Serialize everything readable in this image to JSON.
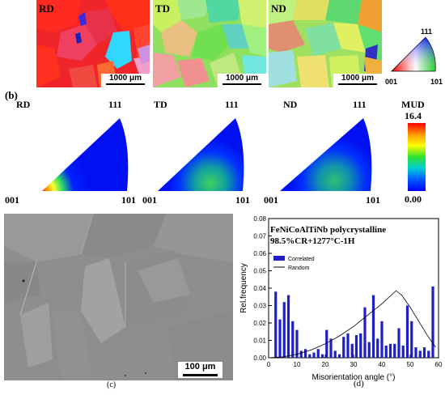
{
  "panel_a": {
    "maps": [
      {
        "label": "RD",
        "scale": "1000 μm"
      },
      {
        "label": "TD",
        "scale": "1000 μm"
      },
      {
        "label": "ND",
        "scale": "1000 μm"
      }
    ],
    "legend": {
      "top": "111",
      "left": "001",
      "right": "101"
    }
  },
  "panel_b": {
    "label": "(b)",
    "figures": [
      {
        "label": "RD",
        "top": "111",
        "left": "001",
        "right": "101"
      },
      {
        "label": "TD",
        "top": "111",
        "left": "001",
        "right": "101"
      },
      {
        "label": "ND",
        "top": "111",
        "left": "001",
        "right": "101"
      }
    ],
    "colorbar": {
      "title": "MUD",
      "max": "16.4",
      "min": "0.00"
    }
  },
  "panel_c": {
    "label": "(c)",
    "scale": "100 μm"
  },
  "panel_d": {
    "label": "(d)",
    "annotation_line1": "FeNiCoAlTiNb polycrystalline",
    "annotation_line2": "98.5%CR+1277°C-1H"
  },
  "colors": {
    "bar": "#1f1fc8",
    "curve": "#000000"
  },
  "chart_data": {
    "type": "bar",
    "xlabel": "Misorientation angle (°)",
    "ylabel": "Rel.frequency",
    "xlim": [
      0,
      60
    ],
    "ylim": [
      0,
      0.08
    ],
    "x_ticks": [
      "0",
      "10",
      "20",
      "30",
      "40",
      "50",
      "60"
    ],
    "y_ticks": [
      "0.00",
      "0.01",
      "0.02",
      "0.03",
      "0.04",
      "0.05",
      "0.06",
      "0.07",
      "0.08"
    ],
    "series": [
      {
        "name": "Correlated",
        "type": "bar",
        "x": [
          2.5,
          4,
          5.5,
          7,
          8.5,
          10,
          11.5,
          13,
          14.5,
          16,
          17.5,
          19,
          20.5,
          22,
          23.5,
          25,
          26.5,
          28,
          29.5,
          31,
          32.5,
          34,
          35.5,
          37,
          38.5,
          40,
          41.5,
          43,
          44.5,
          46,
          47.5,
          49,
          50.5,
          52,
          53.5,
          55,
          56.5,
          58
        ],
        "values": [
          0.038,
          0.022,
          0.032,
          0.036,
          0.021,
          0.016,
          0.004,
          0.005,
          0.002,
          0.003,
          0.005,
          0.002,
          0.016,
          0.011,
          0.004,
          0.002,
          0.012,
          0.014,
          0.008,
          0.013,
          0.014,
          0.029,
          0.009,
          0.036,
          0.011,
          0.021,
          0.007,
          0.008,
          0.008,
          0.017,
          0.007,
          0.03,
          0.021,
          0.006,
          0.004,
          0.006,
          0.004,
          0.041
        ]
      },
      {
        "name": "Random",
        "type": "line",
        "x": [
          0,
          5,
          10,
          15,
          20,
          25,
          30,
          35,
          40,
          45,
          47,
          50,
          53,
          56,
          59
        ],
        "values": [
          0.0,
          0.0005,
          0.002,
          0.0045,
          0.008,
          0.0125,
          0.018,
          0.0245,
          0.031,
          0.0385,
          0.036,
          0.029,
          0.021,
          0.013,
          0.006
        ]
      }
    ],
    "legend_position": "top-left"
  }
}
